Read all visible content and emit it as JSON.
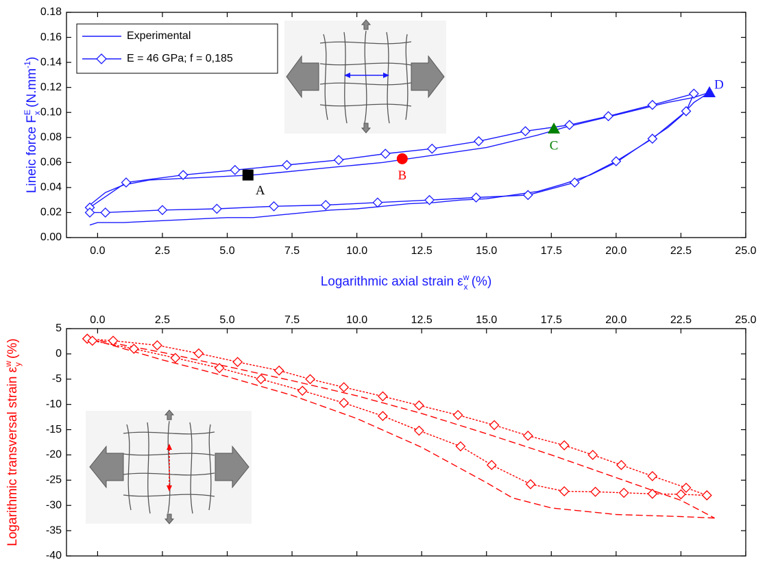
{
  "chart_data": [
    {
      "type": "line",
      "xlabel": [
        {
          "text": "Logarithmic axial strain ε"
        },
        {
          "text": "w",
          "pos": "sup"
        },
        {
          "text": "x",
          "pos": "sub"
        },
        {
          "text": " (%)"
        }
      ],
      "ylabel": [
        {
          "text": "Lineic force F"
        },
        {
          "text": "E",
          "pos": "sup"
        },
        {
          "text": "x",
          "pos": "sub"
        },
        {
          "text": " (N.mm"
        },
        {
          "text": "-1",
          "pos": "sup"
        },
        {
          "text": ")"
        }
      ],
      "label_color": "#1a1aff",
      "xaxis_side": "bottom",
      "xlim": [
        -1.2,
        25
      ],
      "xticks": [
        {
          "value": 0,
          "label": "0.0"
        },
        2.5,
        {
          "value": 5,
          "label": "5.0"
        },
        7.5,
        {
          "value": 10,
          "label": "10.0"
        },
        12.5,
        {
          "value": 15,
          "label": "15.0"
        },
        17.5,
        {
          "value": 20,
          "label": "20.0"
        },
        22.5,
        {
          "value": 25,
          "label": "25.0"
        }
      ],
      "ylim": [
        0,
        0.18
      ],
      "yticks": [
        {
          "value": 0,
          "label": "0.00"
        },
        0.02,
        0.04,
        0.06,
        0.08,
        {
          "value": 0.1,
          "label": "0.10"
        },
        0.12,
        0.14,
        0.16,
        0.18
      ],
      "legend": "upper left",
      "series": [
        {
          "name": "Experimental",
          "color": "#1a1aff",
          "dash": "solid",
          "marker": null,
          "x": [
            -0.3,
            0.3,
            1,
            2,
            3,
            4,
            5,
            6,
            7,
            8,
            9,
            10,
            11,
            12,
            13,
            14,
            15,
            16,
            17,
            18,
            19,
            20,
            21,
            22,
            23,
            23.6,
            23,
            22.5,
            22,
            21,
            20,
            19,
            18,
            17,
            16,
            15,
            14,
            13,
            12,
            11,
            10,
            9,
            8,
            7,
            6,
            5,
            4,
            3,
            2,
            1,
            0,
            -0.3
          ],
          "values": [
            0.026,
            0.036,
            0.042,
            0.046,
            0.047,
            0.048,
            0.049,
            0.05,
            0.052,
            0.054,
            0.056,
            0.058,
            0.06,
            0.063,
            0.066,
            0.069,
            0.072,
            0.077,
            0.082,
            0.088,
            0.093,
            0.098,
            0.103,
            0.108,
            0.112,
            0.116,
            0.108,
            0.097,
            0.088,
            0.074,
            0.06,
            0.05,
            0.043,
            0.037,
            0.034,
            0.031,
            0.03,
            0.028,
            0.027,
            0.025,
            0.023,
            0.022,
            0.02,
            0.018,
            0.016,
            0.016,
            0.015,
            0.014,
            0.013,
            0.012,
            0.012,
            0.01
          ]
        },
        {
          "name": "E = 46 GPa; f = 0,185",
          "color": "#1a1aff",
          "dash": "solid",
          "marker": "diamond",
          "x": [
            -0.3,
            1.1,
            3.3,
            5.3,
            7.3,
            9.3,
            11.1,
            12.9,
            14.7,
            16.5,
            18.2,
            19.7,
            21.4,
            23,
            22.7,
            21.4,
            20,
            18.4,
            16.6,
            14.6,
            12.8,
            10.8,
            8.8,
            6.8,
            4.6,
            2.5,
            0.3,
            -0.3
          ],
          "values": [
            0.024,
            0.044,
            0.05,
            0.054,
            0.058,
            0.062,
            0.067,
            0.071,
            0.077,
            0.085,
            0.09,
            0.097,
            0.106,
            0.115,
            0.101,
            0.079,
            0.061,
            0.044,
            0.034,
            0.032,
            0.03,
            0.028,
            0.026,
            0.025,
            0.023,
            0.022,
            0.02,
            0.02
          ]
        }
      ],
      "markers": [
        {
          "label": "A",
          "x": 5.8,
          "y": 0.05,
          "color": "#000000",
          "shape": "square"
        },
        {
          "label": "B",
          "x": 11.75,
          "y": 0.063,
          "color": "#ff0000",
          "shape": "circle"
        },
        {
          "label": "C",
          "x": 17.6,
          "y": 0.087,
          "color": "#008000",
          "shape": "triangle"
        },
        {
          "label": "D",
          "x": 23.6,
          "y": 0.116,
          "color": "#1a1aff",
          "shape": "triangle"
        }
      ]
    },
    {
      "type": "line",
      "ylabel": [
        {
          "text": "Logarithmic transversal strain ε"
        },
        {
          "text": "w",
          "pos": "sup"
        },
        {
          "text": "y",
          "pos": "sub"
        },
        {
          "text": " (%)"
        }
      ],
      "label_color": "#ff0000",
      "xaxis_side": "top",
      "xlim": [
        -1.2,
        25
      ],
      "xticks": [
        {
          "value": 0,
          "label": "0.0"
        },
        2.5,
        {
          "value": 5,
          "label": "5.0"
        },
        7.5,
        {
          "value": 10,
          "label": "10.0"
        },
        12.5,
        {
          "value": 15,
          "label": "15.0"
        },
        17.5,
        {
          "value": 20,
          "label": "20.0"
        },
        22.5,
        {
          "value": 25,
          "label": "25.0"
        }
      ],
      "ylim": [
        -40,
        5
      ],
      "yticks": [
        5,
        0,
        -5,
        -10,
        -15,
        -20,
        -25,
        -30,
        -35,
        -40
      ],
      "series": [
        {
          "color": "#ff0000",
          "dash": "dashed",
          "marker": null,
          "x": [
            -0.3,
            2.5,
            5,
            7.5,
            10,
            12.5,
            15,
            17.5,
            20,
            22.5,
            23.8
          ],
          "values": [
            3,
            0.3,
            -2.5,
            -5.3,
            -8.3,
            -11.8,
            -15.8,
            -20,
            -24.5,
            -29,
            -32.5
          ]
        },
        {
          "color": "#ff0000",
          "dash": "dashed",
          "marker": null,
          "x": [
            23.8,
            22.5,
            20,
            17.5,
            16,
            15,
            12.5,
            10,
            7.5,
            5,
            2.5,
            -0.3
          ],
          "values": [
            -32.5,
            -32.2,
            -31.8,
            -30.5,
            -28.5,
            -25.5,
            -18.5,
            -12.8,
            -8.2,
            -4.5,
            -1.2,
            3
          ]
        },
        {
          "color": "#ff0000",
          "dash": "dotted",
          "marker": "diamond",
          "x": [
            -0.4,
            0.6,
            2.3,
            3.9,
            5.4,
            7,
            8.2,
            9.5,
            11,
            12.4,
            13.9,
            15.3,
            16.6,
            18,
            19.1,
            20.2,
            21.4,
            22.7,
            23.5
          ],
          "values": [
            3,
            2.6,
            1.7,
            0.1,
            -1.6,
            -3.3,
            -5,
            -6.6,
            -8.4,
            -10.2,
            -12.1,
            -14.1,
            -16.2,
            -18.1,
            -20,
            -22,
            -24.2,
            -26.5,
            -28
          ]
        },
        {
          "color": "#ff0000",
          "dash": "dotted",
          "marker": "diamond",
          "x": [
            -0.4,
            -0.2,
            1.4,
            3,
            4.7,
            6.3,
            7.9,
            9.5,
            11,
            12.4,
            14,
            15.2,
            16.7,
            18,
            19.2,
            20.3,
            21.4,
            22.5,
            23.5
          ],
          "values": [
            3,
            2.6,
            1,
            -0.8,
            -2.8,
            -5,
            -7.3,
            -9.7,
            -12.3,
            -15.2,
            -18.3,
            -22,
            -25.8,
            -27.2,
            -27.3,
            -27.5,
            -27.7,
            -27.8,
            -28
          ]
        }
      ]
    }
  ]
}
